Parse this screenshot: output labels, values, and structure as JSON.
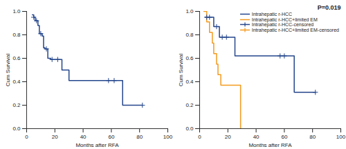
{
  "chart_data": [
    {
      "type": "step",
      "xlabel": "Months after RFA",
      "ylabel": "Cum Survival",
      "xlim": [
        0,
        100
      ],
      "xticks": [
        0,
        20,
        40,
        60,
        80,
        100
      ],
      "ylim": [
        0,
        1
      ],
      "yticks": [
        {
          "value": 0,
          "label": "0.0"
        },
        {
          "value": 0.2,
          "label": "0.2"
        },
        {
          "value": 0.4,
          "label": "0.4"
        },
        {
          "value": 0.6,
          "label": "0.6"
        },
        {
          "value": 0.8,
          "label": "0.8"
        },
        {
          "value": 1,
          "label": "1.0"
        }
      ],
      "series": [
        {
          "type": "line",
          "color": "#24468c",
          "x": [
            4,
            5,
            6,
            8,
            9,
            11,
            12,
            13,
            15,
            17,
            25,
            30,
            68,
            82
          ],
          "values": [
            0.97,
            0.95,
            0.92,
            0.88,
            0.81,
            0.79,
            0.69,
            0.68,
            0.6,
            0.59,
            0.5,
            0.41,
            0.2,
            0.2
          ]
        },
        {
          "type": "scatter",
          "color": "#24468c",
          "marker": "plus",
          "x": [
            5,
            7,
            10,
            14,
            18,
            22,
            58,
            62,
            82
          ],
          "values": [
            0.95,
            0.92,
            0.81,
            0.68,
            0.59,
            0.59,
            0.41,
            0.41,
            0.2
          ]
        }
      ]
    },
    {
      "type": "step",
      "xlabel": "Months after RFA",
      "ylabel": "Cum Survival",
      "xlim": [
        0,
        100
      ],
      "xticks": [
        0,
        20,
        40,
        60,
        80,
        100
      ],
      "ylim": [
        0,
        1
      ],
      "yticks": [
        {
          "value": 0,
          "label": "0.0"
        },
        {
          "value": 0.2,
          "label": "0.2"
        },
        {
          "value": 0.4,
          "label": "0.4"
        },
        {
          "value": 0.6,
          "label": "0.6"
        },
        {
          "value": 0.8,
          "label": "0.8"
        },
        {
          "value": 1,
          "label": "1.0"
        }
      ],
      "annotations": [
        {
          "text": "P=0.019"
        }
      ],
      "legend": "upper right",
      "series": [
        {
          "name": "Intrahepatic r-HCC",
          "type": "line",
          "color": "#24468c",
          "x": [
            4,
            10,
            14,
            25,
            67,
            82
          ],
          "values": [
            0.95,
            0.87,
            0.78,
            0.62,
            0.31,
            0.31
          ]
        },
        {
          "name": "Intrahepatic r-HCC+limited EM",
          "type": "line",
          "color": "#f39a1e",
          "x": [
            3,
            5,
            7,
            9,
            10,
            12,
            13,
            15,
            29
          ],
          "values": [
            1.0,
            0.91,
            0.82,
            0.73,
            0.64,
            0.55,
            0.46,
            0.37,
            0.0
          ]
        },
        {
          "name": "Intrahepatic r-HCC-censored",
          "type": "scatter",
          "color": "#24468c",
          "marker": "plus",
          "x": [
            5,
            7,
            12,
            16,
            19,
            57,
            60,
            82
          ],
          "values": [
            0.95,
            0.95,
            0.87,
            0.78,
            0.78,
            0.62,
            0.62,
            0.31
          ]
        },
        {
          "name": "Intrahepatic r-HCC+limited EM-censored",
          "type": "scatter",
          "color": "#f39a1e",
          "marker": "plus",
          "x": [],
          "values": []
        }
      ]
    }
  ]
}
